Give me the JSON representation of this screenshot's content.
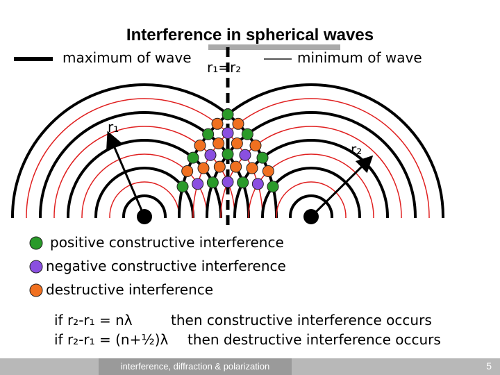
{
  "title": "Interference in spherical waves",
  "legend_top": {
    "maximum": "maximum of wave",
    "equal": "r₁=r₂",
    "minimum": "minimum of wave"
  },
  "labels": {
    "r1": "r₁",
    "r2": "r₂"
  },
  "legend": [
    "positive constructive interference",
    "negative constructive interference",
    "destructive interference"
  ],
  "equations": [
    {
      "condition": "if r₂-r₁ = nλ",
      "result": "then constructive interference occurs"
    },
    {
      "condition": "if r₂-r₁ = (n+½)λ",
      "result": "then destructive interference occurs"
    }
  ],
  "footer": {
    "text": "interference, diffraction & polarization",
    "page": "5"
  }
}
